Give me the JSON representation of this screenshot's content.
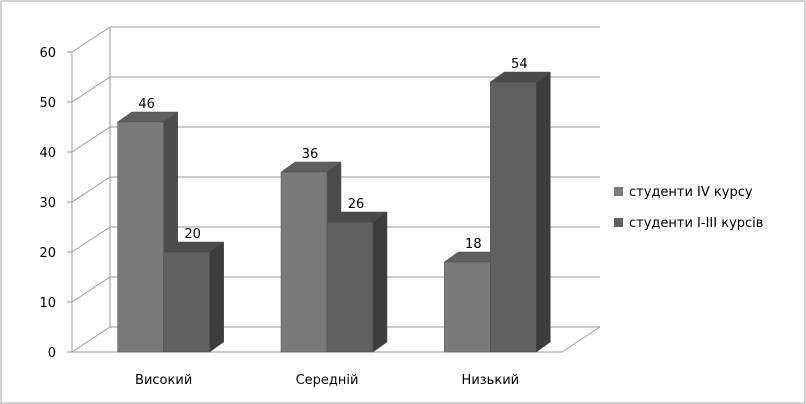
{
  "chart_data": {
    "type": "bar",
    "categories": [
      "Високий",
      "Середній",
      "Низький"
    ],
    "series": [
      {
        "name": "студенти IV курсу",
        "values": [
          46,
          36,
          18
        ],
        "color": "#7a7a7a"
      },
      {
        "name": "студенти I-III курсів",
        "values": [
          20,
          26,
          54
        ],
        "color": "#606060"
      }
    ],
    "y_ticks": [
      "0",
      "10",
      "20",
      "30",
      "40",
      "50",
      "60"
    ],
    "ylim": [
      0,
      60
    ],
    "grid": true,
    "legend_position": "right",
    "title": "",
    "xlabel": "",
    "ylabel": ""
  }
}
